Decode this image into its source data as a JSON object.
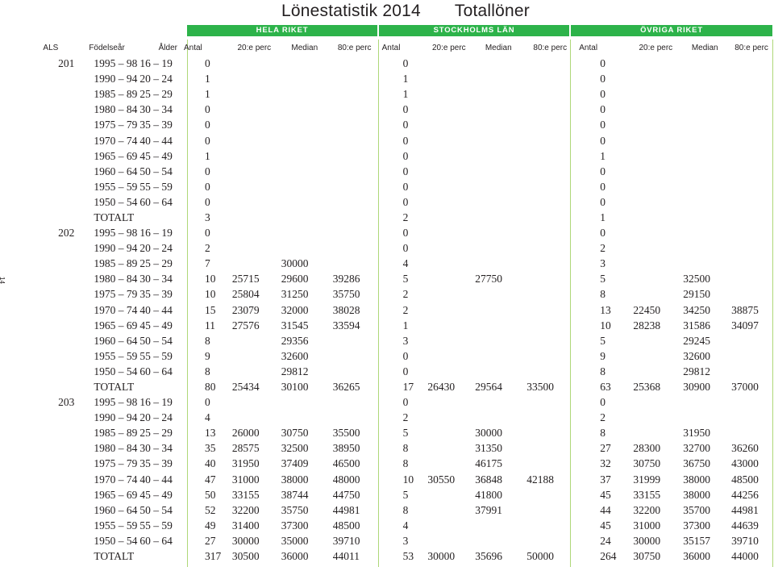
{
  "title": {
    "main": "Lönestatistik 2014",
    "sub": "Totallöner"
  },
  "page_number": "14",
  "regions": [
    "HELA RIKET",
    "STOCKHOLMS LÄN",
    "ÖVRIGA RIKET"
  ],
  "headers": [
    "ALS",
    "Födelseår",
    "Ålder",
    "Antal",
    "20:e perc",
    "Median",
    "80:e perc",
    "Antal",
    "20:e perc",
    "Median",
    "80:e perc",
    "Antal",
    "20:e perc",
    "Median",
    "80:e perc"
  ],
  "rows": [
    [
      "201",
      "1995 – 98",
      "16 – 19",
      "0",
      "",
      "",
      "",
      "0",
      "",
      "",
      "",
      "0",
      "",
      "",
      ""
    ],
    [
      "",
      "1990 – 94",
      "20 – 24",
      "1",
      "",
      "",
      "",
      "1",
      "",
      "",
      "",
      "0",
      "",
      "",
      ""
    ],
    [
      "",
      "1985 – 89",
      "25 – 29",
      "1",
      "",
      "",
      "",
      "1",
      "",
      "",
      "",
      "0",
      "",
      "",
      ""
    ],
    [
      "",
      "1980 – 84",
      "30 – 34",
      "0",
      "",
      "",
      "",
      "0",
      "",
      "",
      "",
      "0",
      "",
      "",
      ""
    ],
    [
      "",
      "1975 – 79",
      "35 – 39",
      "0",
      "",
      "",
      "",
      "0",
      "",
      "",
      "",
      "0",
      "",
      "",
      ""
    ],
    [
      "",
      "1970 – 74",
      "40 – 44",
      "0",
      "",
      "",
      "",
      "0",
      "",
      "",
      "",
      "0",
      "",
      "",
      ""
    ],
    [
      "",
      "1965 – 69",
      "45 – 49",
      "1",
      "",
      "",
      "",
      "0",
      "",
      "",
      "",
      "1",
      "",
      "",
      ""
    ],
    [
      "",
      "1960 – 64",
      "50 – 54",
      "0",
      "",
      "",
      "",
      "0",
      "",
      "",
      "",
      "0",
      "",
      "",
      ""
    ],
    [
      "",
      "1955 – 59",
      "55 – 59",
      "0",
      "",
      "",
      "",
      "0",
      "",
      "",
      "",
      "0",
      "",
      "",
      ""
    ],
    [
      "",
      "1950 – 54",
      "60 – 64",
      "0",
      "",
      "",
      "",
      "0",
      "",
      "",
      "",
      "0",
      "",
      "",
      ""
    ],
    [
      "",
      "TOTALT",
      "",
      "3",
      "",
      "",
      "",
      "2",
      "",
      "",
      "",
      "1",
      "",
      "",
      ""
    ],
    [
      "202",
      "1995 – 98",
      "16 – 19",
      "0",
      "",
      "",
      "",
      "0",
      "",
      "",
      "",
      "0",
      "",
      "",
      ""
    ],
    [
      "",
      "1990 – 94",
      "20 – 24",
      "2",
      "",
      "",
      "",
      "0",
      "",
      "",
      "",
      "2",
      "",
      "",
      ""
    ],
    [
      "",
      "1985 – 89",
      "25 – 29",
      "7",
      "",
      "30000",
      "",
      "4",
      "",
      "",
      "",
      "3",
      "",
      "",
      ""
    ],
    [
      "",
      "1980 – 84",
      "30 – 34",
      "10",
      "25715",
      "29600",
      "39286",
      "5",
      "",
      "27750",
      "",
      "5",
      "",
      "32500",
      ""
    ],
    [
      "",
      "1975 – 79",
      "35 – 39",
      "10",
      "25804",
      "31250",
      "35750",
      "2",
      "",
      "",
      "",
      "8",
      "",
      "29150",
      ""
    ],
    [
      "",
      "1970 – 74",
      "40 – 44",
      "15",
      "23079",
      "32000",
      "38028",
      "2",
      "",
      "",
      "",
      "13",
      "22450",
      "34250",
      "38875"
    ],
    [
      "",
      "1965 – 69",
      "45 – 49",
      "11",
      "27576",
      "31545",
      "33594",
      "1",
      "",
      "",
      "",
      "10",
      "28238",
      "31586",
      "34097"
    ],
    [
      "",
      "1960 – 64",
      "50 – 54",
      "8",
      "",
      "29356",
      "",
      "3",
      "",
      "",
      "",
      "5",
      "",
      "29245",
      ""
    ],
    [
      "",
      "1955 – 59",
      "55 – 59",
      "9",
      "",
      "32600",
      "",
      "0",
      "",
      "",
      "",
      "9",
      "",
      "32600",
      ""
    ],
    [
      "",
      "1950 – 54",
      "60 – 64",
      "8",
      "",
      "29812",
      "",
      "0",
      "",
      "",
      "",
      "8",
      "",
      "29812",
      ""
    ],
    [
      "",
      "TOTALT",
      "",
      "80",
      "25434",
      "30100",
      "36265",
      "17",
      "26430",
      "29564",
      "33500",
      "63",
      "25368",
      "30900",
      "37000"
    ],
    [
      "203",
      "1995 – 98",
      "16 – 19",
      "0",
      "",
      "",
      "",
      "0",
      "",
      "",
      "",
      "0",
      "",
      "",
      ""
    ],
    [
      "",
      "1990 – 94",
      "20 – 24",
      "4",
      "",
      "",
      "",
      "2",
      "",
      "",
      "",
      "2",
      "",
      "",
      ""
    ],
    [
      "",
      "1985 – 89",
      "25 – 29",
      "13",
      "26000",
      "30750",
      "35500",
      "5",
      "",
      "30000",
      "",
      "8",
      "",
      "31950",
      ""
    ],
    [
      "",
      "1980 – 84",
      "30 – 34",
      "35",
      "28575",
      "32500",
      "38950",
      "8",
      "",
      "31350",
      "",
      "27",
      "28300",
      "32700",
      "36260"
    ],
    [
      "",
      "1975 – 79",
      "35 – 39",
      "40",
      "31950",
      "37409",
      "46500",
      "8",
      "",
      "46175",
      "",
      "32",
      "30750",
      "36750",
      "43000"
    ],
    [
      "",
      "1970 – 74",
      "40 – 44",
      "47",
      "31000",
      "38000",
      "48000",
      "10",
      "30550",
      "36848",
      "42188",
      "37",
      "31999",
      "38000",
      "48500"
    ],
    [
      "",
      "1965 – 69",
      "45 – 49",
      "50",
      "33155",
      "38744",
      "44750",
      "5",
      "",
      "41800",
      "",
      "45",
      "33155",
      "38000",
      "44256"
    ],
    [
      "",
      "1960 – 64",
      "50 – 54",
      "52",
      "32200",
      "35750",
      "44981",
      "8",
      "",
      "37991",
      "",
      "44",
      "32200",
      "35700",
      "44981"
    ],
    [
      "",
      "1955 – 59",
      "55 – 59",
      "49",
      "31400",
      "37300",
      "48500",
      "4",
      "",
      "",
      "",
      "45",
      "31000",
      "37300",
      "44639"
    ],
    [
      "",
      "1950 – 54",
      "60 – 64",
      "27",
      "30000",
      "35000",
      "39710",
      "3",
      "",
      "",
      "",
      "24",
      "30000",
      "35157",
      "39710"
    ],
    [
      "",
      "TOTALT",
      "",
      "317",
      "30500",
      "36000",
      "44011",
      "53",
      "30000",
      "35696",
      "50000",
      "264",
      "30750",
      "36000",
      "44000"
    ]
  ]
}
